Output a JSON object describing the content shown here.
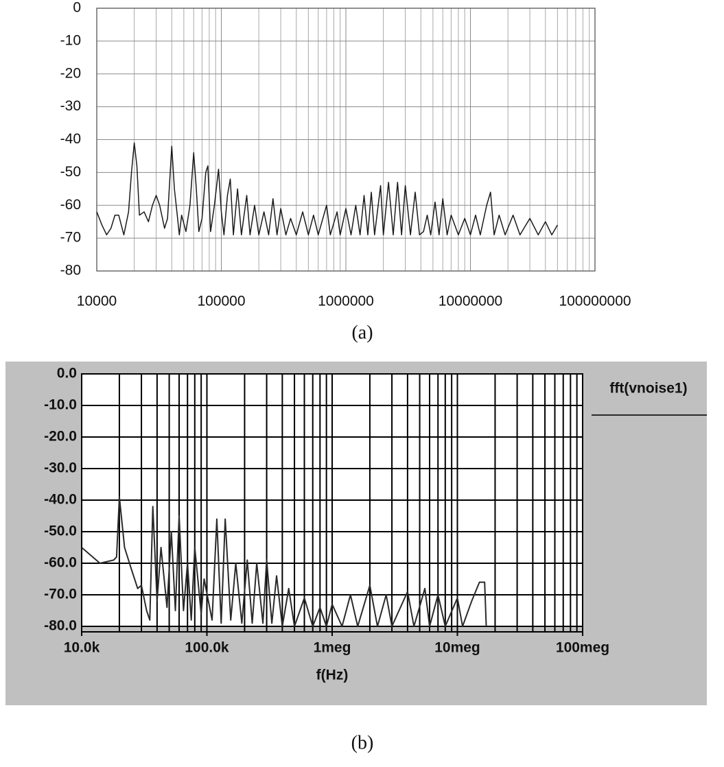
{
  "chart_data": [
    {
      "type": "line",
      "caption": "(a)",
      "log_x": true,
      "grid": true,
      "minor_grid": true,
      "xlim": [
        10000,
        100000000
      ],
      "xticks": [
        10000,
        100000,
        1000000,
        10000000,
        100000000
      ],
      "ylim": [
        -80,
        0
      ],
      "yticks": [
        0,
        -10,
        -20,
        -30,
        -40,
        -50,
        -60,
        -70,
        -80
      ],
      "x": [
        10000,
        11000,
        12000,
        13000,
        14000,
        15000,
        16500,
        18000,
        19000,
        20000,
        21000,
        22000,
        24000,
        26000,
        28000,
        30000,
        32000,
        35000,
        37000,
        40000,
        42000,
        44000,
        46000,
        48000,
        52000,
        56000,
        60000,
        63000,
        66000,
        70000,
        75000,
        78000,
        82000,
        88000,
        95000,
        100000,
        105000,
        112000,
        118000,
        125000,
        135000,
        145000,
        160000,
        170000,
        185000,
        200000,
        220000,
        240000,
        260000,
        280000,
        300000,
        330000,
        360000,
        400000,
        450000,
        500000,
        550000,
        600000,
        700000,
        750000,
        850000,
        900000,
        1000000,
        1100000,
        1200000,
        1300000,
        1400000,
        1500000,
        1600000,
        1700000,
        1900000,
        2000000,
        2200000,
        2400000,
        2600000,
        2800000,
        3000000,
        3300000,
        3600000,
        3900000,
        4200000,
        4500000,
        4800000,
        5200000,
        5600000,
        6000000,
        6500000,
        7000000,
        8000000,
        9000000,
        10000000,
        11000000,
        12000000,
        13500000,
        14500000,
        15500000,
        17000000,
        19000000,
        22000000,
        25000000,
        30000000,
        35000000,
        40000000,
        45000000,
        50000000
      ],
      "series": [
        {
          "name": null,
          "color": "#1a1a1a",
          "values": [
            -62,
            -66,
            -69,
            -67,
            -63,
            -63,
            -69,
            -62,
            -50,
            -41,
            -48,
            -63,
            -62,
            -65,
            -60,
            -57,
            -60,
            -67,
            -64,
            -42,
            -55,
            -62,
            -69,
            -63,
            -68,
            -60,
            -44,
            -55,
            -68,
            -64,
            -50,
            -48,
            -68,
            -60,
            -49,
            -62,
            -69,
            -57,
            -52,
            -69,
            -55,
            -69,
            -57,
            -69,
            -60,
            -69,
            -62,
            -69,
            -58,
            -69,
            -61,
            -69,
            -64,
            -69,
            -62,
            -69,
            -63,
            -69,
            -60,
            -69,
            -62,
            -69,
            -61,
            -69,
            -60,
            -69,
            -57,
            -69,
            -56,
            -69,
            -54,
            -69,
            -53,
            -69,
            -53,
            -69,
            -54,
            -69,
            -56,
            -69,
            -68,
            -63,
            -69,
            -59,
            -69,
            -58,
            -69,
            -63,
            -69,
            -64,
            -69,
            -63,
            -69,
            -60,
            -56,
            -69,
            -63,
            -69,
            -63,
            -69,
            -64,
            -69,
            -65,
            -69,
            -66
          ]
        }
      ]
    },
    {
      "type": "line",
      "caption": "(b)",
      "log_x": true,
      "grid": true,
      "minor_grid": true,
      "x_label": "f(Hz)",
      "xlim": [
        10000,
        100000000
      ],
      "xticks": [
        {
          "value": 10000,
          "label": "10.0k"
        },
        {
          "value": 100000,
          "label": "100.0k"
        },
        {
          "value": 1000000,
          "label": "1meg"
        },
        {
          "value": 10000000,
          "label": "10meg"
        },
        {
          "value": 100000000,
          "label": "100meg"
        }
      ],
      "ylim": [
        -80,
        0
      ],
      "yticks": [
        {
          "value": 0,
          "label": "0.0"
        },
        {
          "value": -10,
          "label": "-10.0"
        },
        {
          "value": -20,
          "label": "-20.0"
        },
        {
          "value": -30,
          "label": "-30.0"
        },
        {
          "value": -40,
          "label": "-40.0"
        },
        {
          "value": -50,
          "label": "-50.0"
        },
        {
          "value": -60,
          "label": "-60.0"
        },
        {
          "value": -70,
          "label": "-70.0"
        },
        {
          "value": -80,
          "label": "-80.0"
        }
      ],
      "x": [
        10000,
        14000,
        18000,
        19000,
        20000,
        22000,
        25000,
        28000,
        30000,
        33000,
        35000,
        37000,
        40000,
        43000,
        48000,
        52000,
        56000,
        60000,
        65000,
        70000,
        75000,
        80000,
        90000,
        95000,
        110000,
        120000,
        130000,
        140000,
        155000,
        170000,
        190000,
        210000,
        230000,
        250000,
        280000,
        300000,
        330000,
        360000,
        400000,
        450000,
        500000,
        600000,
        700000,
        800000,
        900000,
        1000000,
        1200000,
        1400000,
        1600000,
        2000000,
        2300000,
        2700000,
        3000000,
        4000000,
        4500000,
        5500000,
        6000000,
        7000000,
        8000000,
        10000000,
        11000000,
        13000000,
        15000000,
        16500000,
        17000000
      ],
      "series": [
        {
          "name": "fft(vnoise1)",
          "color": "#2a2a2a",
          "values": [
            -55,
            -60,
            -59,
            -58,
            -39,
            -55,
            -62,
            -68,
            -67,
            -75,
            -78,
            -42,
            -72,
            -55,
            -74,
            -50,
            -75,
            -45,
            -75,
            -60,
            -78,
            -55,
            -76,
            -65,
            -78,
            -46,
            -79,
            -46,
            -78,
            -60,
            -79,
            -59,
            -79,
            -60,
            -79,
            -59,
            -79,
            -64,
            -80,
            -68,
            -80,
            -71,
            -80,
            -74,
            -80,
            -73,
            -80,
            -70,
            -80,
            -67,
            -80,
            -70,
            -80,
            -69,
            -80,
            -68,
            -80,
            -70,
            -80,
            -71,
            -80,
            -72,
            -66,
            -66,
            -80
          ]
        }
      ]
    }
  ]
}
